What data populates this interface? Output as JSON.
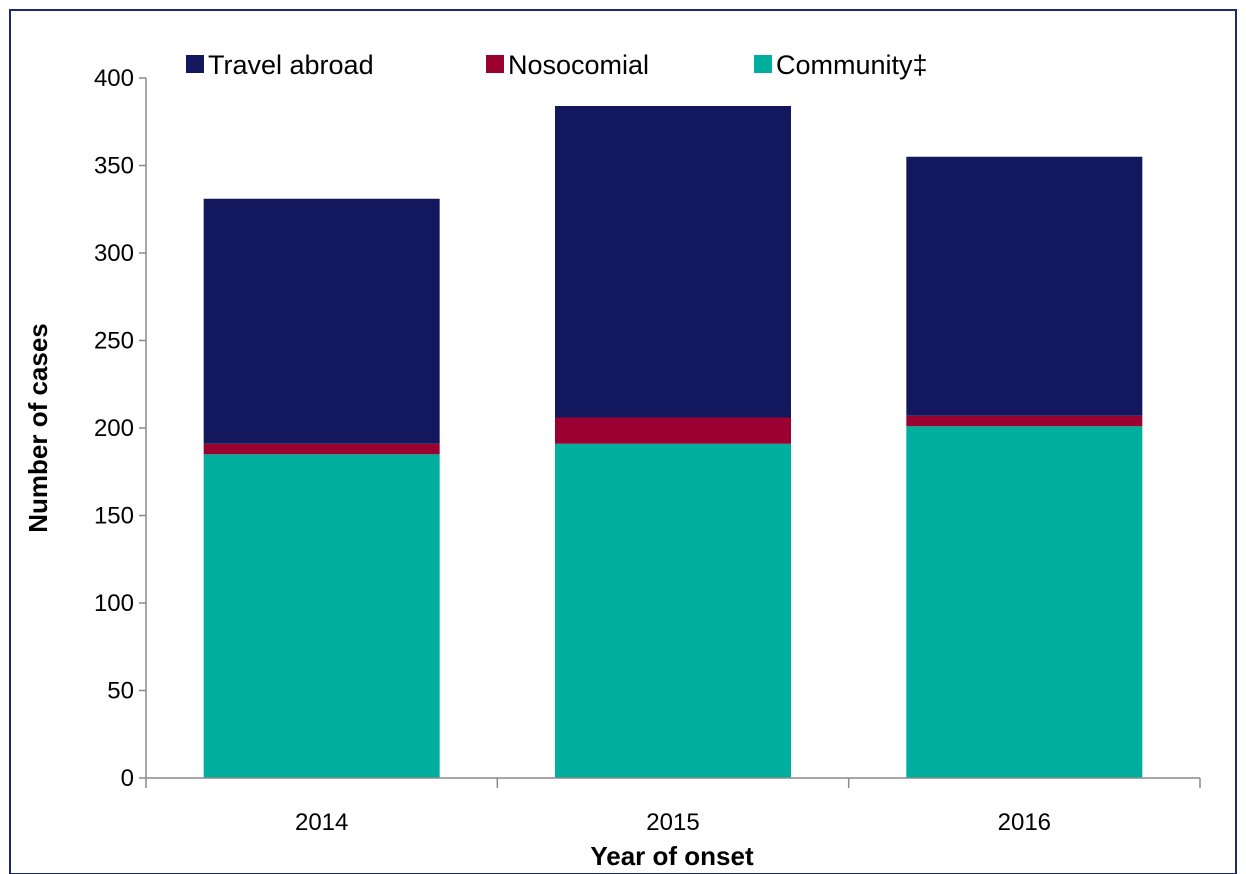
{
  "chart_data": {
    "type": "bar",
    "stacked": true,
    "title": "",
    "xlabel": "Year of onset",
    "ylabel": "Number of cases",
    "categories": [
      "2014",
      "2015",
      "2016"
    ],
    "series": [
      {
        "name": "Community‡",
        "values": [
          185,
          191,
          201
        ],
        "color": "#00AE9D"
      },
      {
        "name": "Nosocomial",
        "values": [
          6,
          15,
          6
        ],
        "color": "#9B0130"
      },
      {
        "name": "Travel abroad",
        "values": [
          140,
          178,
          148
        ],
        "color": "#13185E"
      }
    ],
    "legend_order": [
      "Travel abroad",
      "Nosocomial",
      "Community‡"
    ],
    "ylim": [
      0,
      400
    ],
    "yticks": [
      "0",
      "50",
      "100",
      "150",
      "200",
      "250",
      "300",
      "350",
      "400"
    ],
    "grid": false,
    "legend_position": "top",
    "frame_color": "#1F2A6B"
  }
}
